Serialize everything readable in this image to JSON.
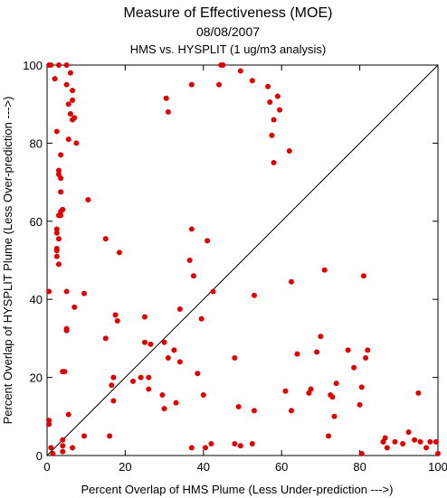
{
  "chart_data": {
    "type": "scatter",
    "title": "Measure of Effectiveness (MOE)",
    "subtitle_date": "08/08/2007",
    "subtitle_analysis": "HMS vs. HYSPLIT  (1 ug/m3 analysis)",
    "xlabel": "Percent Overlap of HMS Plume (Less Under-prediction --->)",
    "ylabel": "Percent Overlap of HYSPLIT Plume (Less Over-prediction --->)",
    "xlim": [
      0,
      100
    ],
    "ylim": [
      0,
      100
    ],
    "xticks": [
      "0",
      "20",
      "40",
      "60",
      "80",
      "100"
    ],
    "yticks": [
      "0",
      "20",
      "40",
      "60",
      "80",
      "100"
    ],
    "reference_line": "y = x diagonal",
    "grid": false,
    "point_color": "#e00000",
    "points": [
      [
        0.5,
        100
      ],
      [
        1,
        100
      ],
      [
        3,
        100
      ],
      [
        5,
        100
      ],
      [
        2,
        96.5
      ],
      [
        6,
        98
      ],
      [
        5,
        95
      ],
      [
        6.5,
        93.5
      ],
      [
        5.5,
        90
      ],
      [
        6.5,
        91
      ],
      [
        6,
        87.5
      ],
      [
        7,
        86.5
      ],
      [
        6.5,
        86
      ],
      [
        5.5,
        81
      ],
      [
        2.5,
        83
      ],
      [
        7.5,
        80
      ],
      [
        3.5,
        77
      ],
      [
        3,
        73
      ],
      [
        3,
        72
      ],
      [
        3.5,
        71
      ],
      [
        3.5,
        67.5
      ],
      [
        4,
        63
      ],
      [
        3.5,
        62.5
      ],
      [
        3.5,
        61.5
      ],
      [
        3,
        61.5
      ],
      [
        2.5,
        58
      ],
      [
        2.5,
        57
      ],
      [
        3,
        55.5
      ],
      [
        2.5,
        53
      ],
      [
        2.5,
        52.5
      ],
      [
        2.5,
        51
      ],
      [
        3,
        49
      ],
      [
        0.5,
        42
      ],
      [
        5,
        42
      ],
      [
        9.5,
        41.5
      ],
      [
        7,
        38
      ],
      [
        5,
        32.5
      ],
      [
        5,
        32
      ],
      [
        4,
        21.5
      ],
      [
        4.5,
        21.5
      ],
      [
        5.5,
        10.5
      ],
      [
        0.5,
        9
      ],
      [
        0.5,
        8
      ],
      [
        1,
        2
      ],
      [
        1.5,
        0.5
      ],
      [
        4,
        4
      ],
      [
        4,
        2.5
      ],
      [
        4,
        1
      ],
      [
        6.5,
        2
      ],
      [
        9.5,
        5
      ],
      [
        10.5,
        65.5
      ],
      [
        15,
        55.5
      ],
      [
        18.5,
        52
      ],
      [
        15,
        30
      ],
      [
        17.5,
        36
      ],
      [
        18,
        34.5
      ],
      [
        16.5,
        18
      ],
      [
        17,
        20
      ],
      [
        17,
        14
      ],
      [
        16,
        5
      ],
      [
        22,
        19
      ],
      [
        24,
        20
      ],
      [
        26,
        20
      ],
      [
        25,
        35.5
      ],
      [
        25,
        29
      ],
      [
        26,
        17
      ],
      [
        26.5,
        28.5
      ],
      [
        29.5,
        15.5
      ],
      [
        30,
        12
      ],
      [
        31,
        25
      ],
      [
        30,
        29
      ],
      [
        30.5,
        91.5
      ],
      [
        31,
        88
      ],
      [
        32.5,
        27
      ],
      [
        33,
        13.5
      ],
      [
        34,
        37.5
      ],
      [
        34,
        24
      ],
      [
        36.5,
        50
      ],
      [
        37,
        58
      ],
      [
        37.5,
        46
      ],
      [
        37,
        95
      ],
      [
        37,
        2
      ],
      [
        38.5,
        21
      ],
      [
        39.5,
        35
      ],
      [
        40,
        15.5
      ],
      [
        40.5,
        2
      ],
      [
        41,
        55
      ],
      [
        42,
        3
      ],
      [
        42.5,
        42
      ],
      [
        44,
        95
      ],
      [
        44.5,
        100
      ],
      [
        45,
        100
      ],
      [
        48,
        25
      ],
      [
        48,
        3
      ],
      [
        49,
        12.5
      ],
      [
        49.5,
        2.5
      ],
      [
        49.5,
        98.5
      ],
      [
        52.5,
        3
      ],
      [
        52.5,
        96
      ],
      [
        53,
        41
      ],
      [
        53,
        11.5
      ],
      [
        56.5,
        94.5
      ],
      [
        57,
        90.5
      ],
      [
        58,
        86
      ],
      [
        57.5,
        82
      ],
      [
        58,
        75
      ],
      [
        59,
        92
      ],
      [
        59.5,
        88.5
      ],
      [
        61,
        16.5
      ],
      [
        62,
        78
      ],
      [
        62.5,
        44.5
      ],
      [
        62.5,
        11.5
      ],
      [
        64,
        26
      ],
      [
        67,
        16
      ],
      [
        67.5,
        17
      ],
      [
        69,
        26.5
      ],
      [
        70,
        30.5
      ],
      [
        71,
        47.5
      ],
      [
        72,
        5
      ],
      [
        72.5,
        15.5
      ],
      [
        73,
        15
      ],
      [
        73.5,
        10
      ],
      [
        74,
        18.5
      ],
      [
        77,
        27
      ],
      [
        78.5,
        22.5
      ],
      [
        80,
        13
      ],
      [
        80.5,
        17.5
      ],
      [
        81,
        46
      ],
      [
        81.5,
        25
      ],
      [
        82,
        27
      ],
      [
        80.5,
        0.5
      ],
      [
        86,
        3.5
      ],
      [
        86,
        3.5
      ],
      [
        86.5,
        4.5
      ],
      [
        87,
        2
      ],
      [
        89,
        3.5
      ],
      [
        91,
        3
      ],
      [
        92.5,
        6
      ],
      [
        94,
        4
      ],
      [
        95,
        16
      ],
      [
        95.5,
        3.5
      ],
      [
        97,
        2
      ],
      [
        98,
        3.5
      ],
      [
        99.5,
        3.5
      ],
      [
        100,
        0.5
      ]
    ]
  }
}
